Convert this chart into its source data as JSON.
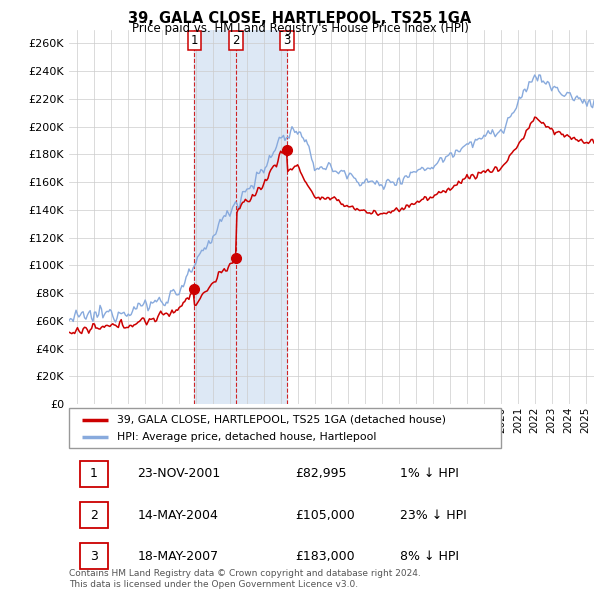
{
  "title": "39, GALA CLOSE, HARTLEPOOL, TS25 1GA",
  "subtitle": "Price paid vs. HM Land Registry's House Price Index (HPI)",
  "xlim_start": 1994.5,
  "xlim_end": 2025.5,
  "ylim": [
    0,
    270000
  ],
  "ytick_vals": [
    0,
    20000,
    40000,
    60000,
    80000,
    100000,
    120000,
    140000,
    160000,
    180000,
    200000,
    220000,
    240000,
    260000
  ],
  "ytick_labels": [
    "£0",
    "£20K",
    "£40K",
    "£60K",
    "£80K",
    "£100K",
    "£120K",
    "£140K",
    "£160K",
    "£180K",
    "£200K",
    "£220K",
    "£240K",
    "£260K"
  ],
  "sale_dates": [
    2001.9,
    2004.37,
    2007.37
  ],
  "sale_prices": [
    82995,
    105000,
    183000
  ],
  "sale_labels": [
    "1",
    "2",
    "3"
  ],
  "sale_label_dates": [
    "23-NOV-2001",
    "14-MAY-2004",
    "18-MAY-2007"
  ],
  "sale_price_labels": [
    "£82,995",
    "£105,000",
    "£183,000"
  ],
  "sale_hpi_labels": [
    "1% ↓ HPI",
    "23% ↓ HPI",
    "8% ↓ HPI"
  ],
  "property_color": "#cc0000",
  "hpi_color": "#88aadd",
  "shade_color": "#dde8f5",
  "background_color": "#ffffff",
  "grid_color": "#cccccc",
  "legend_label_property": "39, GALA CLOSE, HARTLEPOOL, TS25 1GA (detached house)",
  "legend_label_hpi": "HPI: Average price, detached house, Hartlepool",
  "footnote": "Contains HM Land Registry data © Crown copyright and database right 2024.\nThis data is licensed under the Open Government Licence v3.0.",
  "hpi_anchors": {
    "1994": 60000,
    "1995": 62000,
    "1996": 64000,
    "1997": 66000,
    "1998": 68000,
    "1999": 71000,
    "2000": 75000,
    "2001": 82000,
    "2002": 100000,
    "2003": 122000,
    "2004": 140000,
    "2005": 155000,
    "2006": 168000,
    "2007": 192000,
    "2008": 198000,
    "2008.5": 185000,
    "2009": 172000,
    "2010": 170000,
    "2011": 165000,
    "2012": 160000,
    "2013": 158000,
    "2014": 162000,
    "2015": 168000,
    "2016": 172000,
    "2017": 180000,
    "2018": 188000,
    "2019": 193000,
    "2020": 196000,
    "2021": 215000,
    "2022": 238000,
    "2023": 228000,
    "2024": 222000,
    "2025": 218000
  }
}
